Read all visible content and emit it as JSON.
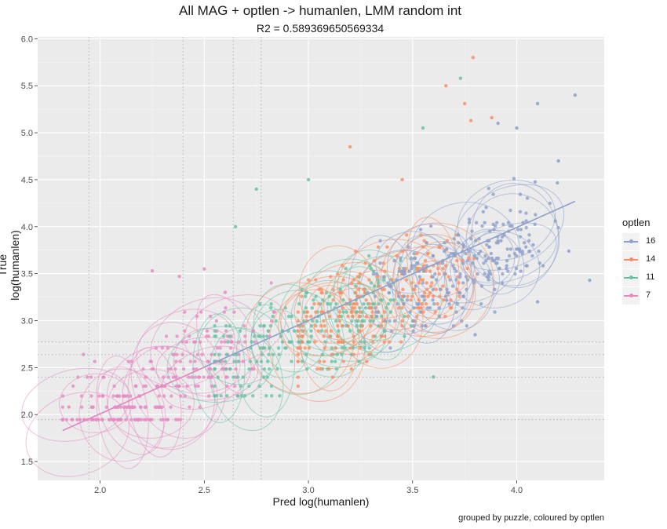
{
  "chart_data": {
    "type": "scatter",
    "title": "All MAG + optlen -> humanlen, LMM random int",
    "subtitle": "R2 = 0.589369650569334",
    "xlabel": "Pred log(humanlen)",
    "ylabel": "True log(humanlen)",
    "caption": "grouped by puzzle, coloured by optlen",
    "xlim": [
      1.7,
      4.42
    ],
    "ylim": [
      1.3,
      6.02
    ],
    "x_ticks": [
      "2.0",
      "2.5",
      "3.0",
      "3.5",
      "4.0"
    ],
    "y_ticks": [
      "1.5",
      "2.0",
      "2.5",
      "3.0",
      "3.5",
      "4.0",
      "4.5",
      "5.0",
      "5.5",
      "6.0"
    ],
    "legend_title": "optlen",
    "legend_position": "right",
    "grid": true,
    "vlines_dotted": [
      1.946,
      2.398,
      2.639,
      2.773
    ],
    "hlines_dotted": [
      1.946,
      2.398,
      2.639,
      2.773
    ],
    "fit_line": {
      "x": [
        1.82,
        4.28
      ],
      "y": [
        1.83,
        4.27
      ]
    },
    "series": [
      {
        "name": "16",
        "color": "#8DA0CB",
        "x_range": [
          3.2,
          4.2
        ],
        "y_range": [
          2.6,
          5.4
        ],
        "center": [
          3.7,
          3.6
        ],
        "outliers": [
          [
            4.28,
            5.4
          ],
          [
            4.1,
            5.31
          ],
          [
            3.91,
            5.1
          ],
          [
            4.0,
            5.05
          ],
          [
            4.2,
            4.7
          ],
          [
            4.25,
            3.74
          ],
          [
            4.35,
            3.43
          ],
          [
            4.1,
            3.2
          ],
          [
            3.8,
            2.85
          ]
        ]
      },
      {
        "name": "14",
        "color": "#FC8D62",
        "x_range": [
          2.95,
          3.9
        ],
        "y_range": [
          2.2,
          5.8
        ],
        "center": [
          3.3,
          3.2
        ],
        "outliers": [
          [
            3.79,
            5.8
          ],
          [
            3.66,
            5.5
          ],
          [
            3.75,
            5.31
          ],
          [
            3.78,
            5.13
          ],
          [
            3.88,
            5.16
          ],
          [
            3.2,
            4.85
          ],
          [
            3.45,
            4.5
          ]
        ]
      },
      {
        "name": "11",
        "color": "#66C2A5",
        "x_range": [
          2.55,
          3.7
        ],
        "y_range": [
          2.2,
          5.1
        ],
        "center": [
          3.0,
          2.8
        ],
        "outliers": [
          [
            3.73,
            5.58
          ],
          [
            3.55,
            5.05
          ],
          [
            2.65,
            4.0
          ],
          [
            2.75,
            4.4
          ],
          [
            3.0,
            4.5
          ],
          [
            3.6,
            2.4
          ]
        ]
      },
      {
        "name": "7",
        "color": "#E78AC3",
        "x_range": [
          1.82,
          2.9
        ],
        "y_range": [
          1.94,
          3.53
        ],
        "center": [
          2.25,
          2.35
        ],
        "outliers": [
          [
            2.25,
            3.53
          ],
          [
            2.5,
            3.55
          ],
          [
            2.38,
            3.47
          ],
          [
            1.85,
            2.08
          ],
          [
            1.92,
            2.64
          ],
          [
            2.6,
            3.3
          ]
        ]
      }
    ]
  }
}
